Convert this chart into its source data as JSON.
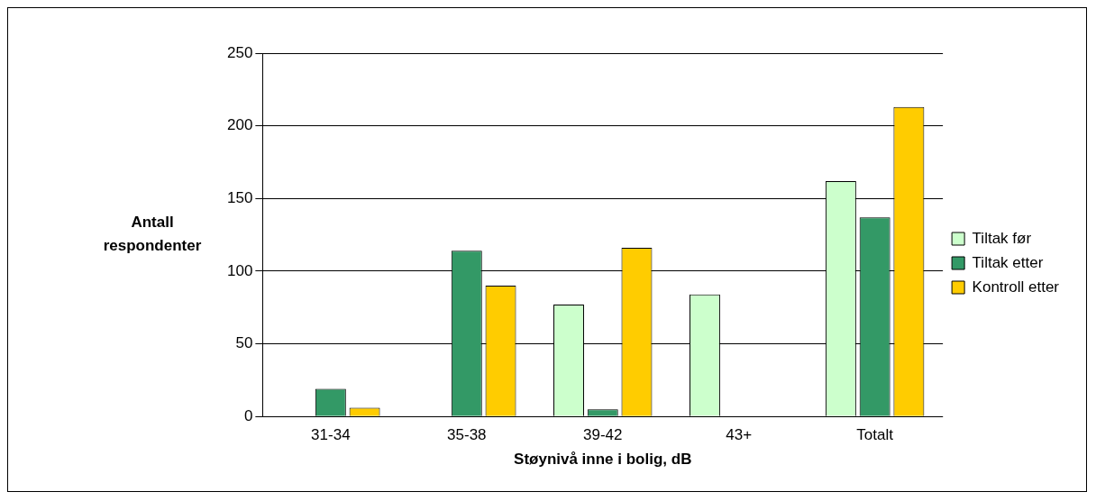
{
  "chart_data": {
    "type": "bar",
    "xlabel": "Støynivå inne i bolig, dB",
    "ylabel": "Antall respondenter",
    "categories": [
      "31-34",
      "35-38",
      "39-42",
      "43+",
      "Totalt"
    ],
    "series": [
      {
        "name": "Tiltak før",
        "color": "#ccffcc",
        "values": [
          0,
          0,
          77,
          84,
          162
        ]
      },
      {
        "name": "Tiltak etter",
        "color": "#339966",
        "values": [
          19,
          114,
          5,
          0,
          137
        ]
      },
      {
        "name": "Kontroll etter",
        "color": "#ffcc00",
        "values": [
          6,
          90,
          116,
          0,
          213
        ]
      }
    ],
    "ylim": [
      0,
      250
    ],
    "yticks": [
      0,
      50,
      100,
      150,
      200,
      250
    ],
    "grid": "y",
    "legend": "right"
  }
}
